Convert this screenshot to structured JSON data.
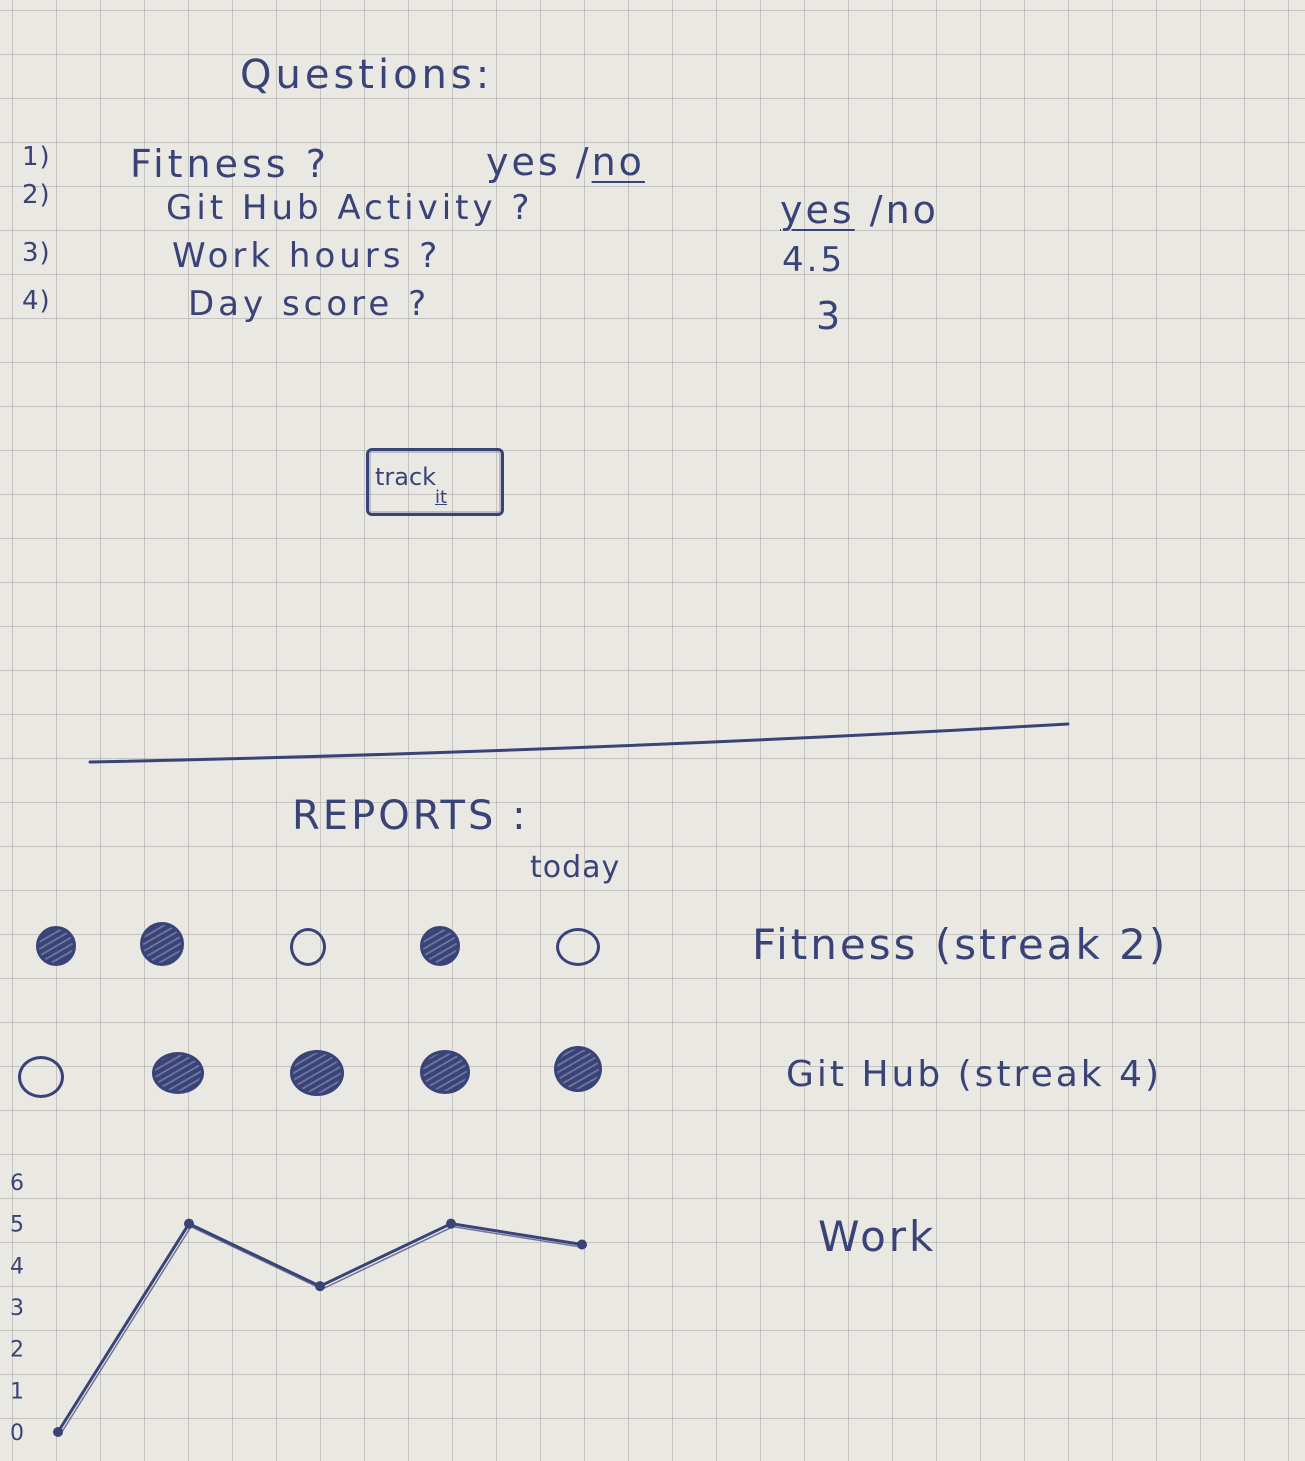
{
  "questions": {
    "title": "Questions:",
    "items": [
      {
        "number": "1)",
        "text": "Fitness ?",
        "answer_yes": "yes",
        "answer_sep": " /",
        "answer_no": "no"
      },
      {
        "number": "2)",
        "text": "Git Hub Activity ?",
        "answer_yes": "yes",
        "answer_sep": " /",
        "answer_no": "no"
      },
      {
        "number": "3)",
        "text": "Work hours ?",
        "value": "4.5"
      },
      {
        "number": "4)",
        "text": "Day score ?",
        "value": "3"
      }
    ],
    "track_button": {
      "line1": "track",
      "line2": "it"
    }
  },
  "reports": {
    "title": "REPORTS :",
    "today_label": "today",
    "habits": [
      {
        "label": "Fitness (streak 2)",
        "days": [
          true,
          true,
          false,
          true,
          false
        ]
      },
      {
        "label": "Git Hub (streak 4)",
        "days": [
          false,
          true,
          true,
          true,
          true
        ]
      }
    ],
    "work": {
      "label": "Work"
    }
  },
  "chart_data": {
    "type": "line",
    "x": [
      0,
      1,
      2,
      3,
      4
    ],
    "values": [
      0,
      5,
      3.5,
      5,
      4.5
    ],
    "y_ticks": [
      "0",
      "1",
      "2",
      "3",
      "4",
      "5",
      "6"
    ],
    "ylim": [
      0,
      6
    ],
    "series": [
      {
        "name": "Work",
        "values": [
          0,
          5,
          3.5,
          5,
          4.5
        ]
      }
    ]
  },
  "colors": {
    "ink": "#3a4377",
    "paper": "#e9e8e3"
  }
}
